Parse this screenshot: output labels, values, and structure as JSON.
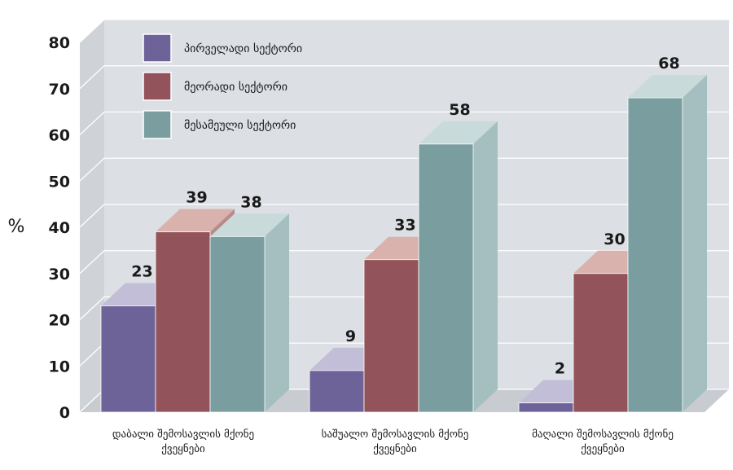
{
  "chart_data": {
    "type": "bar",
    "ylabel": "%",
    "ylim": [
      0,
      80
    ],
    "yticks": [
      0,
      10,
      20,
      30,
      40,
      50,
      60,
      70,
      80
    ],
    "categories": [
      [
        "დაბალი შემოსავლის მქონე",
        "ქვეყნები"
      ],
      [
        "საშუალო შემოსავლის მქონე",
        "ქვეყნები"
      ],
      [
        "მაღალი შემოსავლის მქონე",
        "ქვეყნები"
      ]
    ],
    "series": [
      {
        "name": "პირველადი სექტორი",
        "values": [
          23,
          9,
          2
        ],
        "color": "#6e6399",
        "top": "#c3bed8",
        "side": "#a9a3c4"
      },
      {
        "name": "მეორადი სექტორი",
        "values": [
          39,
          33,
          30
        ],
        "color": "#92545a",
        "top": "#d9b2ad",
        "side": "#b98a8c"
      },
      {
        "name": "მესამეული სექტორი",
        "values": [
          38,
          58,
          68
        ],
        "color": "#7a9e9f",
        "top": "#c8dad9",
        "side": "#a5bfc0"
      }
    ],
    "legend": "top-left",
    "grid": true,
    "background": "#dcdfe3"
  }
}
